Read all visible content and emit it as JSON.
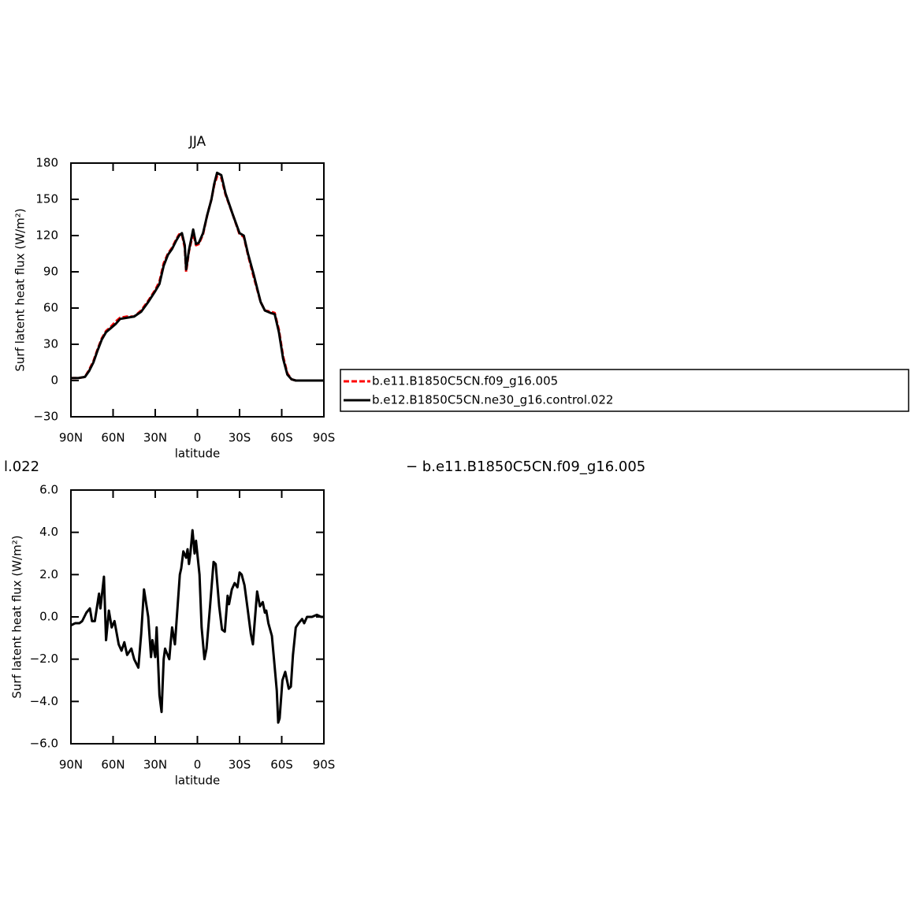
{
  "chart_data": [
    {
      "type": "line",
      "title": "JJA",
      "x_label": "latitude",
      "y_label": "Surf latent heat flux (W/m²)",
      "x": [
        90,
        85,
        80,
        77,
        74,
        71,
        68,
        65,
        62,
        58,
        55,
        50,
        45,
        40,
        35,
        30,
        27,
        24,
        21,
        18,
        15,
        13,
        11,
        9,
        8,
        6,
        3,
        1,
        -1,
        -4,
        -7,
        -10,
        -12,
        -14,
        -17,
        -20,
        -25,
        -30,
        -33,
        -36,
        -40,
        -45,
        -48,
        -52,
        -55,
        -58,
        -61,
        -64,
        -67,
        -70,
        -75,
        -80,
        -85,
        -90
      ],
      "series": [
        {
          "name": "b.e11.B1850C5CN.f09_g16.005",
          "color": "#ff0000",
          "linestyle": "dashed",
          "values": [
            2,
            2,
            3,
            9,
            16,
            26,
            35,
            41,
            44,
            49,
            52,
            53,
            53,
            58,
            66,
            75,
            82,
            97,
            105,
            110,
            117,
            121,
            121,
            110,
            90,
            107,
            122,
            112,
            113,
            121,
            137,
            150,
            162,
            169,
            168,
            154,
            138,
            121,
            119,
            104,
            86,
            65,
            58,
            57,
            56,
            42,
            20,
            6,
            1,
            0,
            0,
            0,
            0,
            0
          ]
        },
        {
          "name": "b.e12.B1850C5CN.ne30_g16.control.022",
          "color": "#000000",
          "linestyle": "solid",
          "values": [
            2,
            2,
            3,
            8,
            15,
            25,
            34,
            40,
            43,
            47,
            51,
            52,
            53,
            57,
            65,
            74,
            80,
            95,
            104,
            109,
            116,
            120,
            122,
            112,
            92,
            108,
            125,
            113,
            114,
            122,
            137,
            150,
            163,
            172,
            170,
            155,
            138,
            122,
            120,
            105,
            88,
            65,
            58,
            56,
            55,
            40,
            18,
            5,
            1,
            0,
            0,
            0,
            0,
            0
          ]
        }
      ],
      "xlim": [
        90,
        -90
      ],
      "xticks": [
        {
          "value": 90,
          "label": "90N"
        },
        {
          "value": 60,
          "label": "60N"
        },
        {
          "value": 30,
          "label": "30N"
        },
        0,
        {
          "value": -30,
          "label": "30S"
        },
        {
          "value": -60,
          "label": "60S"
        },
        {
          "value": -90,
          "label": "90S"
        }
      ],
      "ylim": [
        -30,
        180
      ],
      "yticks": [
        {
          "value": -30,
          "label": "−30"
        },
        0,
        30,
        60,
        90,
        120,
        150,
        180
      ],
      "legend": "right"
    },
    {
      "type": "line",
      "annotations": [
        "l.022",
        "− b.e11.B1850C5CN.f09_g16.005"
      ],
      "x_label": "latitude",
      "y_label": "Surf latent heat flux (W/m²)",
      "x": [
        90,
        87,
        84,
        82,
        79,
        76.5,
        75,
        73,
        70,
        69,
        66.5,
        65,
        63,
        61,
        59,
        56,
        54,
        52,
        50,
        47,
        45,
        42,
        40,
        38,
        35,
        33,
        32,
        30,
        29,
        27,
        25.5,
        24,
        23,
        20,
        19,
        18,
        16,
        12.5,
        11.5,
        10,
        8,
        7,
        6,
        5,
        3.5,
        2,
        1,
        -1.5,
        -3,
        -5,
        -6.5,
        -9,
        -11.5,
        -13,
        -15.5,
        -17.5,
        -19.5,
        -21.5,
        -22.5,
        -24.5,
        -26.5,
        -28.5,
        -30,
        -31.5,
        -33.5,
        -35.5,
        -38,
        -39.5,
        -42.5,
        -44.5,
        -46.5,
        -48,
        -49,
        -50.5,
        -53,
        -54.5,
        -56.5,
        -57.5,
        -58.5,
        -60.5,
        -62.5,
        -65,
        -66.5,
        -68,
        -70,
        -72,
        -74.5,
        -76,
        -78,
        -81.5,
        -85,
        -88,
        -90
      ],
      "series": [
        {
          "color": "#000000",
          "linestyle": "solid",
          "values": [
            -0.4,
            -0.3,
            -0.3,
            -0.2,
            0.2,
            0.4,
            -0.2,
            -0.2,
            1.1,
            0.4,
            1.9,
            -1.1,
            0.3,
            -0.5,
            -0.2,
            -1.3,
            -1.6,
            -1.2,
            -1.8,
            -1.5,
            -2.0,
            -2.4,
            -0.8,
            1.3,
            0.0,
            -1.9,
            -1.1,
            -1.9,
            -0.5,
            -3.7,
            -4.5,
            -2.0,
            -1.5,
            -2.0,
            -1.2,
            -0.5,
            -1.3,
            2.0,
            2.3,
            3.1,
            2.8,
            3.2,
            2.5,
            3.0,
            4.1,
            3.0,
            3.6,
            2.0,
            -0.5,
            -2.0,
            -1.5,
            0.5,
            2.6,
            2.5,
            0.5,
            -0.6,
            -0.7,
            1.0,
            0.6,
            1.3,
            1.6,
            1.4,
            2.1,
            2.0,
            1.5,
            0.5,
            -0.8,
            -1.3,
            1.2,
            0.5,
            0.7,
            0.2,
            0.3,
            -0.3,
            -0.9,
            -2.0,
            -3.5,
            -5.0,
            -4.8,
            -3.0,
            -2.6,
            -3.4,
            -3.3,
            -1.8,
            -0.5,
            -0.3,
            -0.1,
            -0.3,
            0.0,
            0.0,
            0.1,
            0.0,
            0.0
          ]
        }
      ],
      "xlim": [
        90,
        -90
      ],
      "xticks": [
        {
          "value": 90,
          "label": "90N"
        },
        {
          "value": 60,
          "label": "60N"
        },
        {
          "value": 30,
          "label": "30N"
        },
        0,
        {
          "value": -30,
          "label": "30S"
        },
        {
          "value": -60,
          "label": "60S"
        },
        {
          "value": -90,
          "label": "90S"
        }
      ],
      "ylim": [
        -6,
        6
      ],
      "yticks": [
        {
          "value": -6,
          "label": "−6.0"
        },
        {
          "value": -4,
          "label": "−4.0"
        },
        {
          "value": -2,
          "label": "−2.0"
        },
        {
          "value": 0,
          "label": "0.0"
        },
        {
          "value": 2,
          "label": "2.0"
        },
        {
          "value": 4,
          "label": "4.0"
        },
        {
          "value": 6,
          "label": "6.0"
        }
      ]
    }
  ]
}
